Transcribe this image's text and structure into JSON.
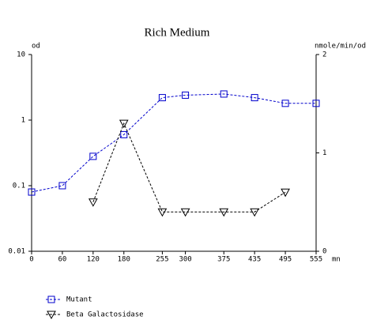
{
  "chart_data": {
    "type": "line",
    "title": "Rich Medium",
    "x_label": "mn",
    "y_label": "od",
    "y2_label": "nmole/min/od",
    "x": [
      0,
      60,
      120,
      180,
      255,
      300,
      375,
      435,
      495,
      555
    ],
    "xlim": [
      0,
      555
    ],
    "xticks": [
      0,
      60,
      120,
      180,
      255,
      300,
      375,
      435,
      495,
      555
    ],
    "ylim": [
      0.01,
      10
    ],
    "yticks": [
      0.01,
      0.1,
      1,
      10
    ],
    "y_scale": "log",
    "y2lim": [
      0,
      2
    ],
    "y2ticks": [
      0,
      1,
      2
    ],
    "series": [
      {
        "name": "Mutant",
        "color": "#0000cc",
        "marker": "square",
        "values": [
          0.08,
          0.1,
          0.28,
          0.6,
          2.2,
          2.4,
          2.5,
          2.2,
          1.8,
          1.8
        ]
      },
      {
        "name": "Beta Galactosidase",
        "color": "#000000",
        "marker": "triangle-down",
        "axis": "y2",
        "values": [
          null,
          null,
          0.5,
          1.3,
          0.4,
          0.4,
          0.4,
          0.4,
          0.6,
          null
        ]
      }
    ]
  }
}
